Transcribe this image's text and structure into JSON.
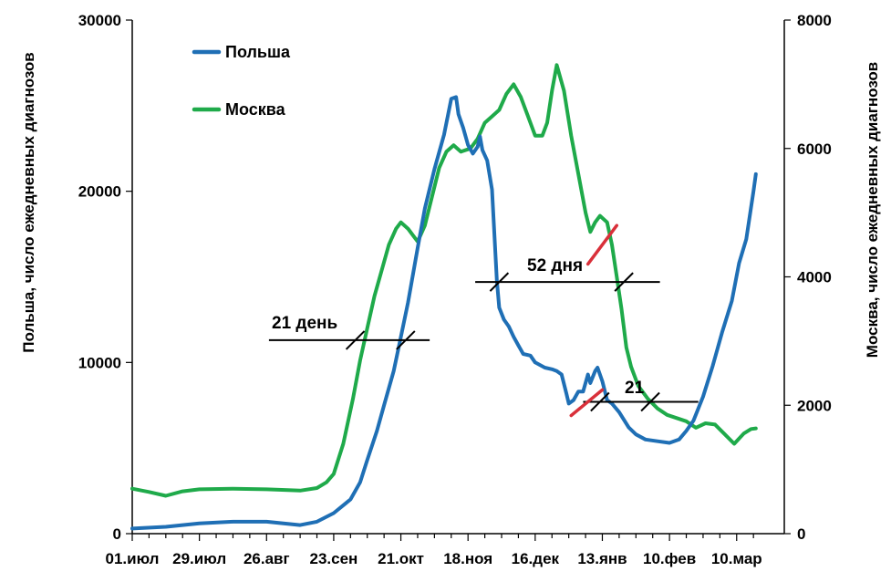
{
  "chart_data": {
    "type": "line",
    "x_tick_labels": [
      "01.июл",
      "29.июл",
      "26.авг",
      "23.сен",
      "21.окт",
      "18.ноя",
      "16.дек",
      "13.янв",
      "10.фев",
      "10.мар"
    ],
    "x_tick_days": [
      0,
      28,
      56,
      84,
      112,
      140,
      168,
      196,
      224,
      252
    ],
    "y_left": {
      "label": "Польша, число ежедневных диагнозов",
      "range": [
        0,
        30000
      ],
      "ticks": [
        0,
        10000,
        20000,
        30000
      ],
      "tick_labels": [
        "0",
        "10000",
        "20000",
        "30000"
      ]
    },
    "y_right": {
      "label": "Москва, число ежедневных диагнозов",
      "range": [
        0,
        8000
      ],
      "ticks": [
        0,
        2000,
        4000,
        6000,
        8000
      ],
      "tick_labels": [
        "0",
        "2000",
        "4000",
        "6000",
        "8000"
      ]
    },
    "series": [
      {
        "name": "Польша",
        "axis": "left",
        "color": "#1f6fb5",
        "points": [
          [
            0,
            300
          ],
          [
            14,
            400
          ],
          [
            28,
            600
          ],
          [
            42,
            700
          ],
          [
            56,
            700
          ],
          [
            63,
            600
          ],
          [
            70,
            500
          ],
          [
            77,
            700
          ],
          [
            84,
            1200
          ],
          [
            91,
            2000
          ],
          [
            95,
            3000
          ],
          [
            98,
            4300
          ],
          [
            102,
            6000
          ],
          [
            105,
            7500
          ],
          [
            109,
            9500
          ],
          [
            112,
            11500
          ],
          [
            115,
            13500
          ],
          [
            119,
            16700
          ],
          [
            122,
            19000
          ],
          [
            126,
            21300
          ],
          [
            130,
            23300
          ],
          [
            133,
            25400
          ],
          [
            135,
            25500
          ],
          [
            136,
            24500
          ],
          [
            138,
            23700
          ],
          [
            140,
            22700
          ],
          [
            142,
            22200
          ],
          [
            144,
            22600
          ],
          [
            145,
            23200
          ],
          [
            146,
            22400
          ],
          [
            148,
            21800
          ],
          [
            150,
            20100
          ],
          [
            151,
            17500
          ],
          [
            152,
            14800
          ],
          [
            153,
            13200
          ],
          [
            155,
            12500
          ],
          [
            157,
            12100
          ],
          [
            159,
            11500
          ],
          [
            161,
            11000
          ],
          [
            163,
            10500
          ],
          [
            166,
            10400
          ],
          [
            168,
            10000
          ],
          [
            172,
            9700
          ],
          [
            175,
            9600
          ],
          [
            177,
            9500
          ],
          [
            179,
            9300
          ],
          [
            181,
            8200
          ],
          [
            182,
            7600
          ],
          [
            184,
            7800
          ],
          [
            186,
            8300
          ],
          [
            188,
            8300
          ],
          [
            190,
            9300
          ],
          [
            191,
            8800
          ],
          [
            193,
            9500
          ],
          [
            194,
            9700
          ],
          [
            196,
            8900
          ],
          [
            198,
            7800
          ],
          [
            200,
            7600
          ],
          [
            203,
            7100
          ],
          [
            207,
            6200
          ],
          [
            210,
            5800
          ],
          [
            214,
            5500
          ],
          [
            219,
            5400
          ],
          [
            224,
            5300
          ],
          [
            228,
            5500
          ],
          [
            231,
            6000
          ],
          [
            234,
            6600
          ],
          [
            238,
            8000
          ],
          [
            242,
            9800
          ],
          [
            246,
            11800
          ],
          [
            250,
            13600
          ],
          [
            253,
            15800
          ],
          [
            256,
            17200
          ],
          [
            259,
            20000
          ],
          [
            260,
            21000
          ]
        ]
      },
      {
        "name": "Москва",
        "axis": "right",
        "color": "#1faa4a",
        "points": [
          [
            0,
            700
          ],
          [
            7,
            650
          ],
          [
            14,
            590
          ],
          [
            21,
            660
          ],
          [
            28,
            690
          ],
          [
            42,
            700
          ],
          [
            56,
            690
          ],
          [
            70,
            670
          ],
          [
            77,
            710
          ],
          [
            81,
            800
          ],
          [
            84,
            930
          ],
          [
            88,
            1400
          ],
          [
            92,
            2100
          ],
          [
            95,
            2700
          ],
          [
            98,
            3200
          ],
          [
            101,
            3700
          ],
          [
            104,
            4100
          ],
          [
            107,
            4500
          ],
          [
            110,
            4750
          ],
          [
            112,
            4850
          ],
          [
            115,
            4750
          ],
          [
            117,
            4650
          ],
          [
            119,
            4550
          ],
          [
            122,
            4800
          ],
          [
            124,
            5100
          ],
          [
            128,
            5700
          ],
          [
            131,
            5950
          ],
          [
            134,
            6050
          ],
          [
            137,
            5950
          ],
          [
            141,
            6000
          ],
          [
            144,
            6150
          ],
          [
            147,
            6400
          ],
          [
            150,
            6500
          ],
          [
            153,
            6600
          ],
          [
            156,
            6850
          ],
          [
            159,
            7000
          ],
          [
            162,
            6800
          ],
          [
            165,
            6500
          ],
          [
            168,
            6200
          ],
          [
            171,
            6200
          ],
          [
            173,
            6400
          ],
          [
            175,
            6900
          ],
          [
            177,
            7300
          ],
          [
            180,
            6900
          ],
          [
            183,
            6200
          ],
          [
            186,
            5600
          ],
          [
            189,
            5000
          ],
          [
            191,
            4700
          ],
          [
            193,
            4850
          ],
          [
            195,
            4950
          ],
          [
            198,
            4850
          ],
          [
            200,
            4500
          ],
          [
            202,
            4000
          ],
          [
            204,
            3500
          ],
          [
            206,
            2900
          ],
          [
            208,
            2600
          ],
          [
            211,
            2300
          ],
          [
            215,
            2100
          ],
          [
            219,
            1950
          ],
          [
            223,
            1850
          ],
          [
            227,
            1800
          ],
          [
            231,
            1750
          ],
          [
            235,
            1650
          ],
          [
            239,
            1720
          ],
          [
            243,
            1700
          ],
          [
            247,
            1550
          ],
          [
            251,
            1400
          ],
          [
            255,
            1560
          ],
          [
            258,
            1630
          ],
          [
            260,
            1640
          ]
        ]
      }
    ],
    "legend": {
      "placement": "top-left",
      "entries": [
        "Польша",
        "Москва"
      ]
    },
    "annotations": [
      {
        "text": "21 день",
        "axis": "left",
        "line": {
          "x_start": 57,
          "x_end": 124,
          "y": 11300
        },
        "markers": [
          {
            "x": 93,
            "y": 11300
          },
          {
            "x": 114,
            "y": 11300
          }
        ]
      },
      {
        "text": "52 дня",
        "axis": "left",
        "line": {
          "x_start": 143,
          "x_end": 220,
          "y": 14700
        },
        "markers": [
          {
            "x": 153,
            "y": 14700
          },
          {
            "x": 205,
            "y": 14700
          }
        ]
      },
      {
        "text": "21",
        "axis": "left",
        "line": {
          "x_start": 188,
          "x_end": 236,
          "y": 7700
        },
        "markers": [
          {
            "x": 195,
            "y": 7700
          },
          {
            "x": 216,
            "y": 7700
          }
        ]
      }
    ],
    "red_segments": [
      {
        "axis": "right",
        "x_start": 190,
        "y_start": 4200,
        "x_end": 202,
        "y_end": 4800
      },
      {
        "axis": "left",
        "x_start": 183,
        "y_start": 6900,
        "x_end": 196,
        "y_end": 8400
      }
    ],
    "grid": false
  }
}
